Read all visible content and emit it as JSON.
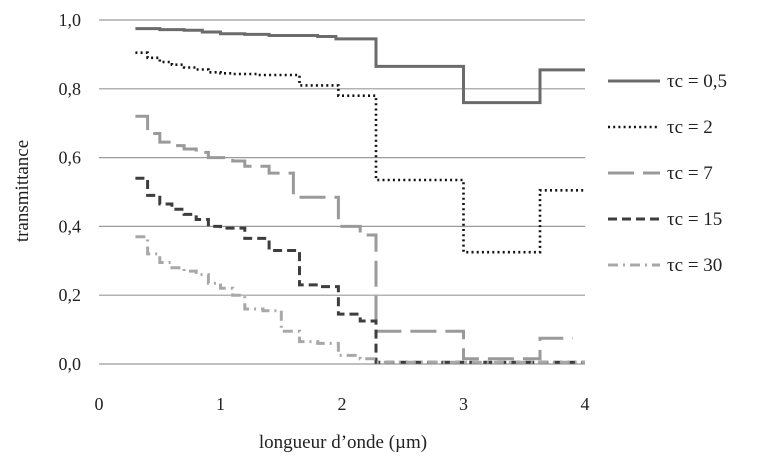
{
  "chart_data": {
    "type": "line",
    "title": "",
    "xlabel": "longueur  d’onde (µm)",
    "ylabel": "transmittance",
    "xlim": [
      0,
      4
    ],
    "ylim": [
      0,
      1
    ],
    "x_ticks": [
      0,
      1,
      2,
      3,
      4
    ],
    "y_ticks": [
      0.0,
      0.2,
      0.4,
      0.6,
      0.8,
      1.0
    ],
    "x_tick_labels": [
      "0",
      "1",
      "2",
      "3",
      "4"
    ],
    "y_tick_labels": [
      "0,0",
      "0,2",
      "0,4",
      "0,6",
      "0,8",
      "1,0"
    ],
    "grid": "horizontal",
    "legend_position": "right",
    "series": [
      {
        "name": "τc = 0,5",
        "color": "#6b6b6b",
        "dash": "solid",
        "x": [
          0.3,
          0.5,
          0.7,
          0.85,
          1.0,
          1.2,
          1.4,
          1.6,
          1.8,
          1.95,
          2.1,
          2.28,
          2.6,
          3.0,
          3.3,
          3.63,
          4.0
        ],
        "y": [
          0.975,
          0.972,
          0.97,
          0.965,
          0.96,
          0.958,
          0.955,
          0.955,
          0.952,
          0.945,
          0.945,
          0.865,
          0.865,
          0.76,
          0.76,
          0.855,
          0.855
        ]
      },
      {
        "name": "τc = 2",
        "color": "#111111",
        "dash": "dotted",
        "x": [
          0.3,
          0.4,
          0.5,
          0.6,
          0.7,
          0.8,
          0.9,
          1.0,
          1.1,
          1.3,
          1.5,
          1.65,
          1.8,
          1.97,
          2.15,
          2.28,
          2.6,
          3.0,
          3.3,
          3.63,
          4.0
        ],
        "y": [
          0.905,
          0.89,
          0.878,
          0.87,
          0.862,
          0.856,
          0.848,
          0.845,
          0.843,
          0.84,
          0.84,
          0.81,
          0.81,
          0.78,
          0.78,
          0.535,
          0.535,
          0.325,
          0.325,
          0.505,
          0.505
        ]
      },
      {
        "name": "τc = 7",
        "color": "#9a9a9a",
        "dash": "longdash",
        "x": [
          0.3,
          0.4,
          0.5,
          0.6,
          0.7,
          0.8,
          0.9,
          1.0,
          1.1,
          1.2,
          1.4,
          1.6,
          1.8,
          1.97,
          2.15,
          2.28,
          2.6,
          3.0,
          3.3,
          3.63,
          3.9
        ],
        "y": [
          0.72,
          0.67,
          0.645,
          0.635,
          0.625,
          0.615,
          0.6,
          0.6,
          0.59,
          0.575,
          0.555,
          0.485,
          0.485,
          0.4,
          0.375,
          0.095,
          0.095,
          0.015,
          0.015,
          0.075,
          0.075
        ]
      },
      {
        "name": "τc = 15",
        "color": "#3d3d3d",
        "dash": "dashed",
        "x": [
          0.3,
          0.4,
          0.5,
          0.6,
          0.7,
          0.8,
          0.9,
          1.0,
          1.2,
          1.4,
          1.65,
          1.8,
          1.97,
          2.15,
          2.28,
          2.6,
          3.0,
          3.3,
          3.63,
          4.0
        ],
        "y": [
          0.54,
          0.49,
          0.465,
          0.45,
          0.435,
          0.42,
          0.4,
          0.395,
          0.365,
          0.33,
          0.23,
          0.225,
          0.145,
          0.125,
          0.005,
          0.005,
          0.005,
          0.005,
          0.005,
          0.005
        ]
      },
      {
        "name": "τc = 30",
        "color": "#a8a8a8",
        "dash": "dashdot",
        "x": [
          0.3,
          0.4,
          0.5,
          0.6,
          0.7,
          0.8,
          0.9,
          1.0,
          1.1,
          1.2,
          1.35,
          1.5,
          1.65,
          1.8,
          1.97,
          2.15,
          2.28,
          2.6,
          3.0,
          3.63,
          4.0
        ],
        "y": [
          0.37,
          0.32,
          0.295,
          0.28,
          0.27,
          0.26,
          0.235,
          0.22,
          0.2,
          0.16,
          0.155,
          0.095,
          0.065,
          0.06,
          0.025,
          0.015,
          0.005,
          0.005,
          0.005,
          0.005,
          0.005
        ]
      }
    ]
  }
}
